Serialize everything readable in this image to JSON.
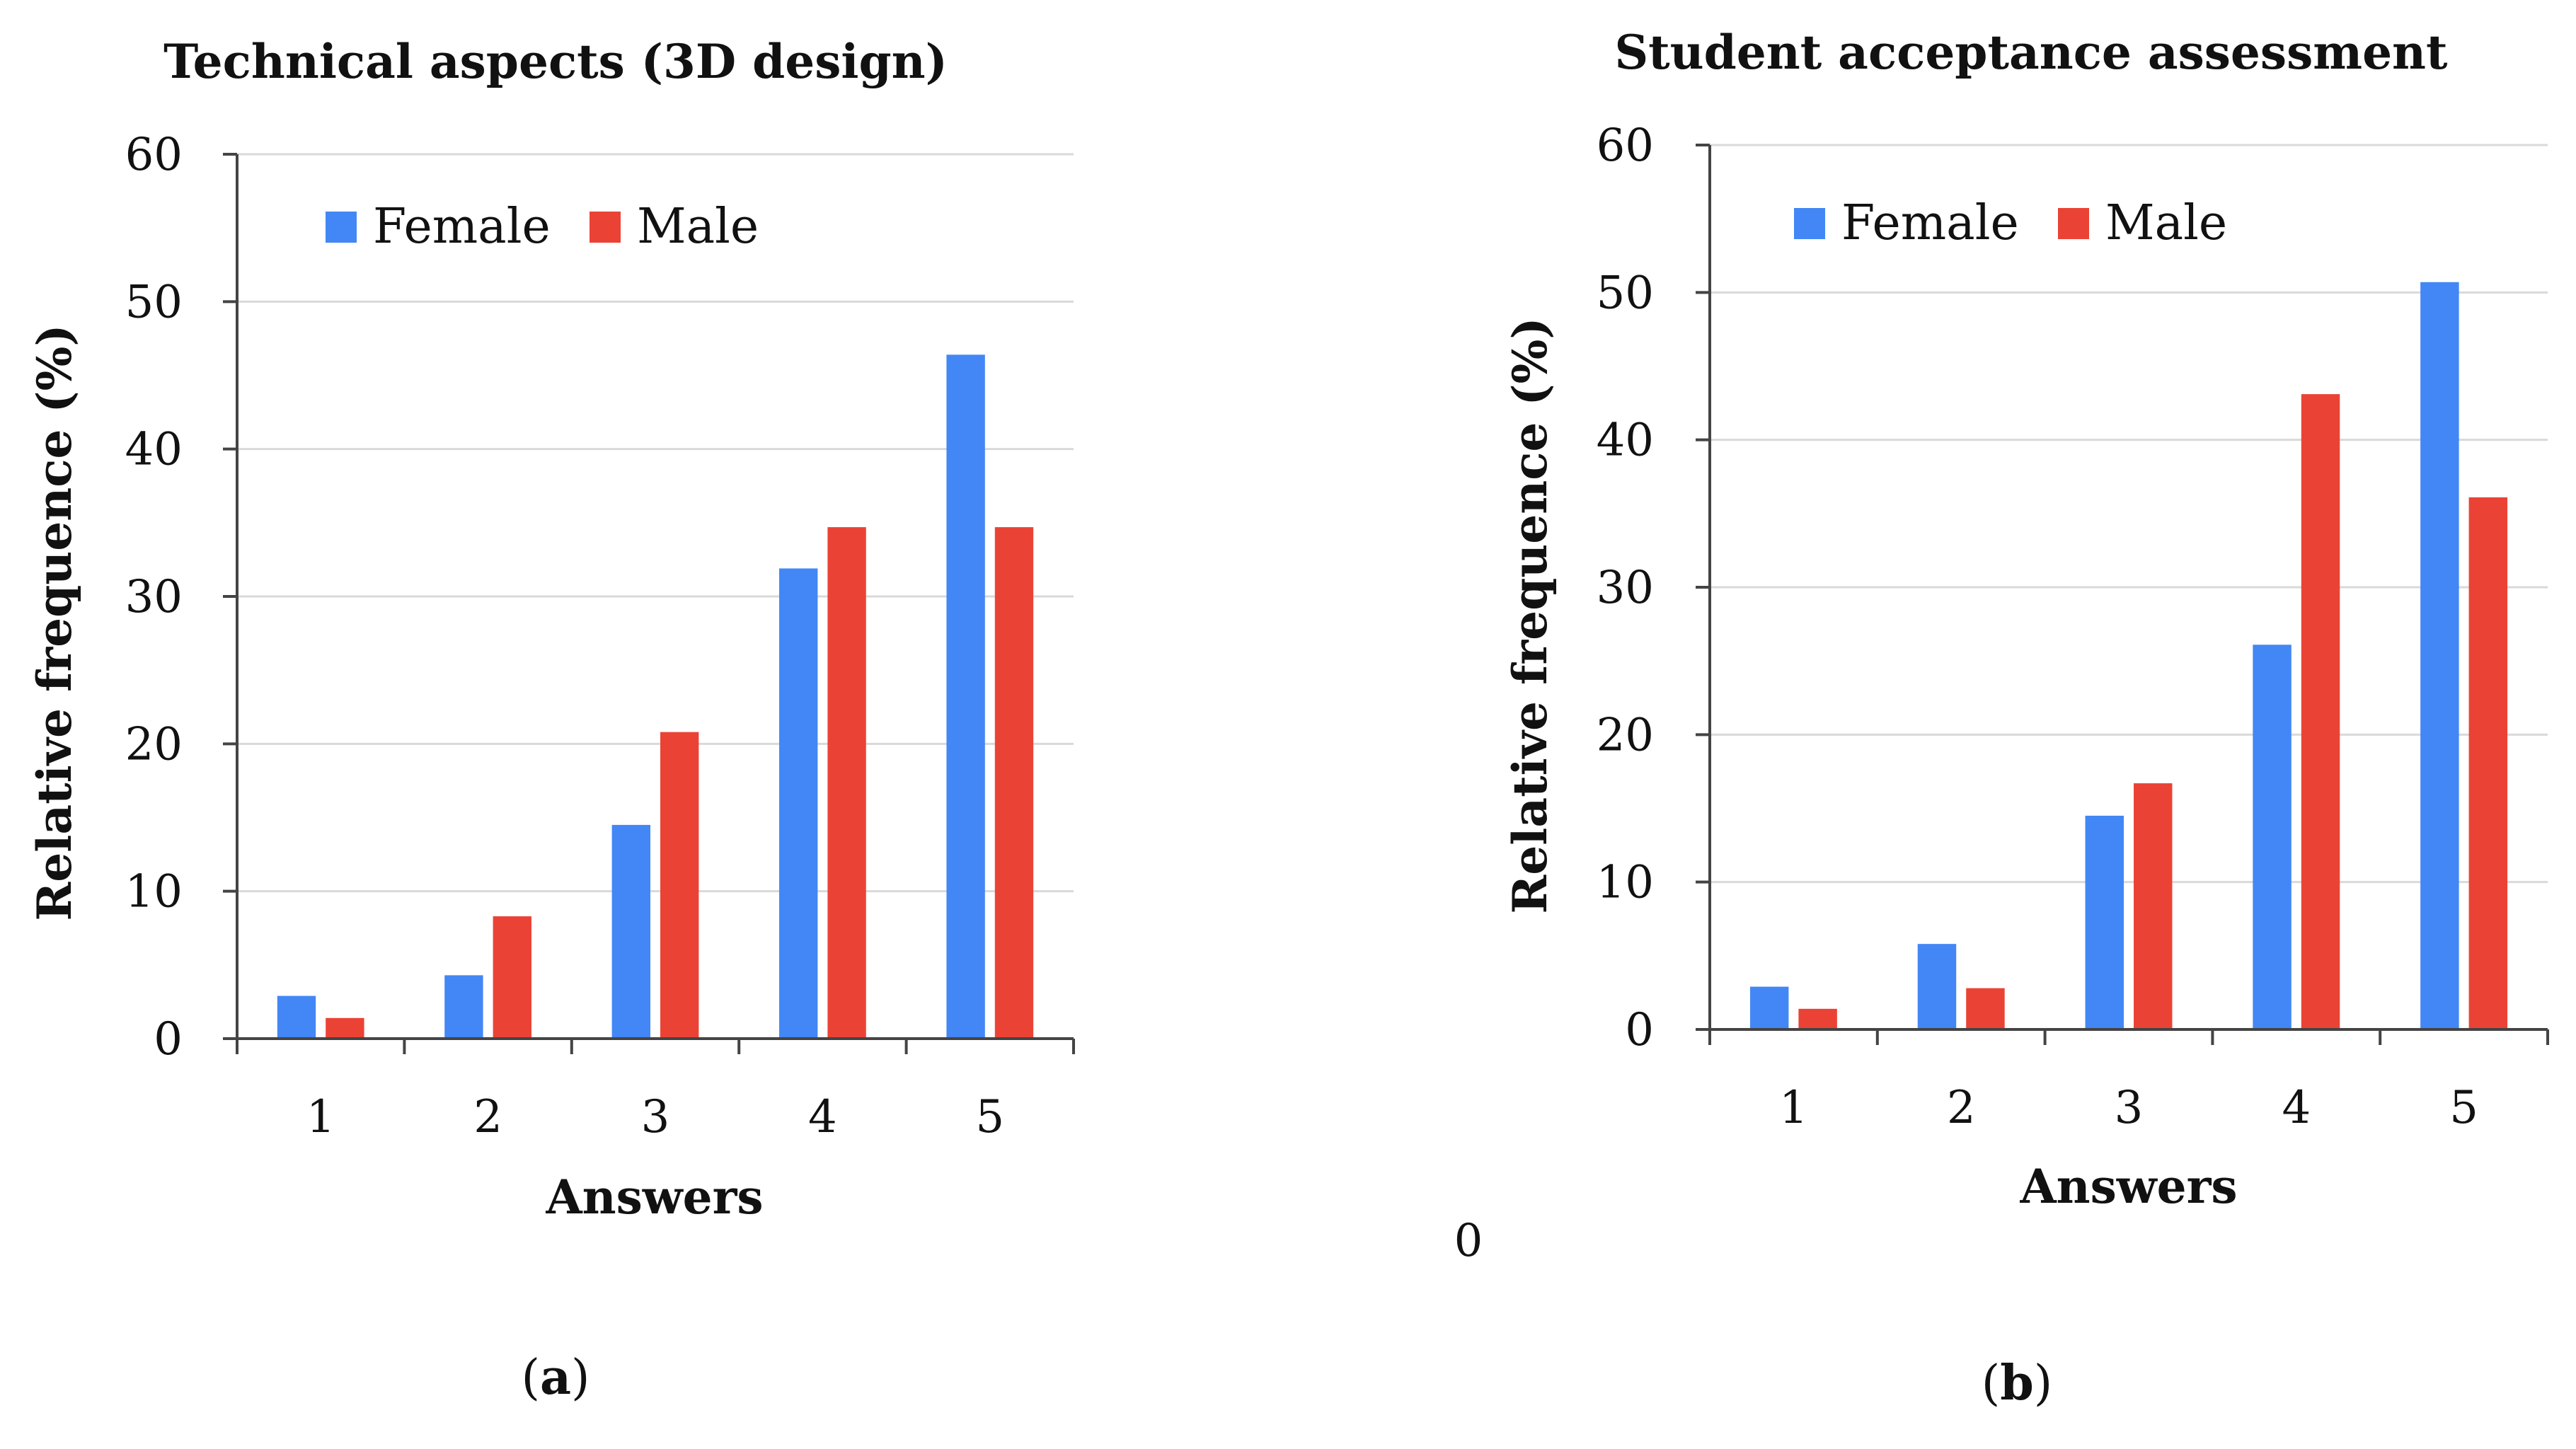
{
  "colors": {
    "female": "#4287f5",
    "male": "#ea4335"
  },
  "chart_data": [
    {
      "type": "bar",
      "title": "Technical aspects (3D design)",
      "xlabel": "Answers",
      "ylabel": "Relative frequence (%)",
      "categories": [
        "1",
        "2",
        "3",
        "4",
        "5"
      ],
      "ylim": [
        0,
        60
      ],
      "yticks": [
        "0",
        "10",
        "20",
        "30",
        "40",
        "50",
        "60"
      ],
      "grid": true,
      "legend_position": "top-left",
      "series": [
        {
          "name": "Female",
          "values": [
            2.9,
            4.3,
            14.5,
            31.9,
            46.4
          ]
        },
        {
          "name": "Male",
          "values": [
            1.4,
            8.3,
            20.8,
            34.7,
            34.7
          ]
        }
      ],
      "panel_label_open": "(",
      "panel_label": "a",
      "panel_label_close": ")"
    },
    {
      "type": "bar",
      "title": "Student acceptance assessment",
      "xlabel": "Answers",
      "ylabel": "Relative frequence (%)",
      "categories": [
        "1",
        "2",
        "3",
        "4",
        "5"
      ],
      "ylim": [
        0,
        60
      ],
      "yticks": [
        "0",
        "10",
        "20",
        "30",
        "40",
        "50",
        "60"
      ],
      "grid": true,
      "legend_position": "top-left",
      "series": [
        {
          "name": "Female",
          "values": [
            2.9,
            5.8,
            14.5,
            26.1,
            50.7
          ]
        },
        {
          "name": "Male",
          "values": [
            1.4,
            2.8,
            16.7,
            43.1,
            36.1
          ]
        }
      ],
      "panel_label_open": "(",
      "panel_label": "b",
      "panel_label_close": ")"
    }
  ],
  "stray_label": "0"
}
